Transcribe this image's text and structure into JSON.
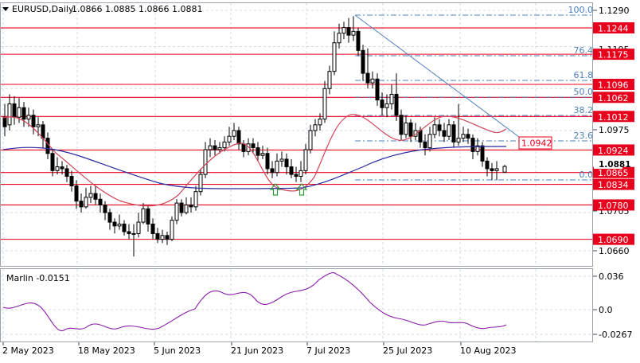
{
  "header": {
    "symbol": "EURUSD,Daily",
    "ohlc": "1.0866 1.0885 1.0866 1.0881"
  },
  "indicator": {
    "label": "Marlin -0.0151",
    "axis_labels": [
      "0.036",
      "0.0",
      "-0.0267"
    ]
  },
  "price_axis": {
    "ticks": [
      "1.1290",
      "1.1195",
      "1.0975",
      "1.0705",
      "1.0660"
    ]
  },
  "levels": [
    {
      "label": "1.1244",
      "value": 1.1244
    },
    {
      "label": "1.1175",
      "value": 1.1175
    },
    {
      "label": "1.1096",
      "value": 1.1096
    },
    {
      "label": "1.1062",
      "value": 1.1062
    },
    {
      "label": "1.1012",
      "value": 1.1012
    },
    {
      "label": "1.0924",
      "value": 1.0924
    },
    {
      "label": "1.0865",
      "value": 1.0865
    },
    {
      "label": "1.0834",
      "value": 1.0834
    },
    {
      "label": "1.0780",
      "value": 1.078
    },
    {
      "label": "1.0690",
      "value": 1.069
    }
  ],
  "current_price_label": "1.0881",
  "marker_label": "1.0942",
  "fibonacci": [
    "100.0",
    "76.4",
    "61.8",
    "50.0",
    "38.2",
    "23.6",
    "0.0"
  ],
  "date_axis": [
    "2 May 2023",
    "18 May 2023",
    "5 Jun 2023",
    "21 Jun 2023",
    "7 Jul 2023",
    "25 Jul 2023",
    "10 Aug 2023"
  ],
  "colors": {
    "level": "#e8001c",
    "fib": "#4f81bd",
    "ma_fast": "#d0455a",
    "ma_slow": "#2a2aa0",
    "oscillator": "#8b1fa8",
    "arrow": "#2e9a3a",
    "grid": "#c9d3dc"
  },
  "icons": [
    "dropdown-triangle-icon",
    "up-arrow-icon"
  ]
}
